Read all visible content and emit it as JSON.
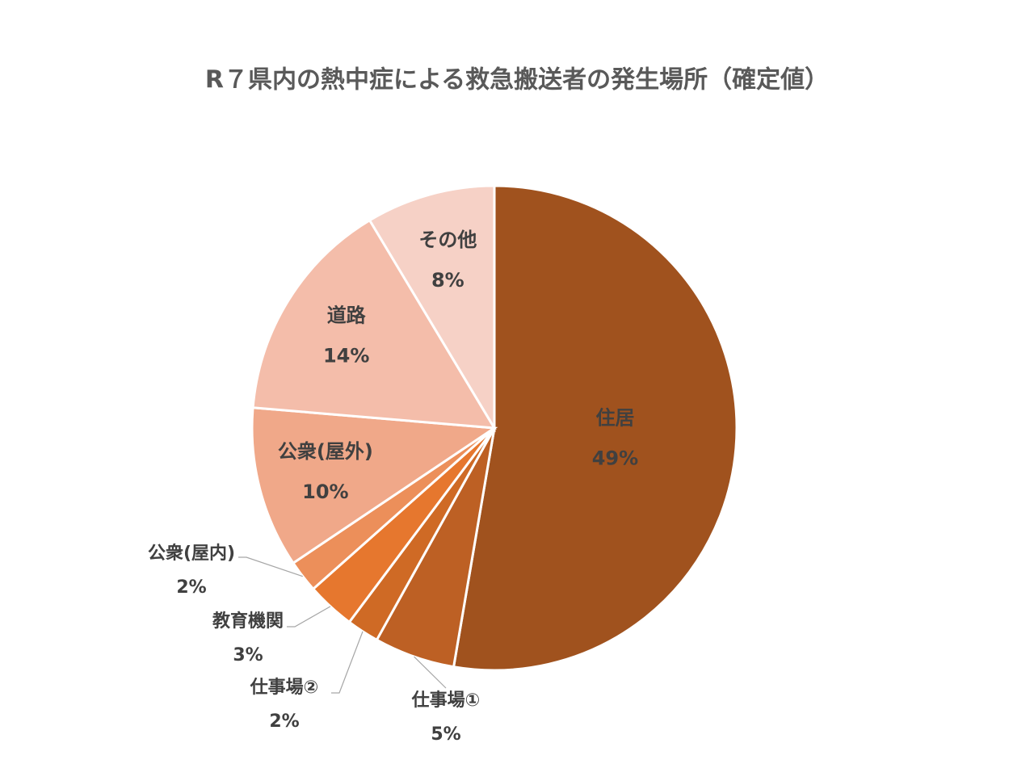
{
  "chart_data": {
    "type": "pie",
    "title": "R７県内の熱中症による救急搬送者の発生場所（確定値）",
    "categories": [
      "住居",
      "仕事場①",
      "仕事場②",
      "教育機関",
      "公衆(屋内)",
      "公衆(屋外)",
      "道路",
      "その他"
    ],
    "values": [
      49,
      5,
      2,
      3,
      2,
      10,
      14,
      8
    ],
    "value_labels": [
      "49%",
      "5%",
      "2%",
      "3%",
      "2%",
      "10%",
      "14%",
      "8%"
    ],
    "colors": [
      "#a0521e",
      "#bd6024",
      "#cf6a25",
      "#e6772e",
      "#ec8f5a",
      "#f0a889",
      "#f4bdaa",
      "#f6d1c6"
    ]
  }
}
